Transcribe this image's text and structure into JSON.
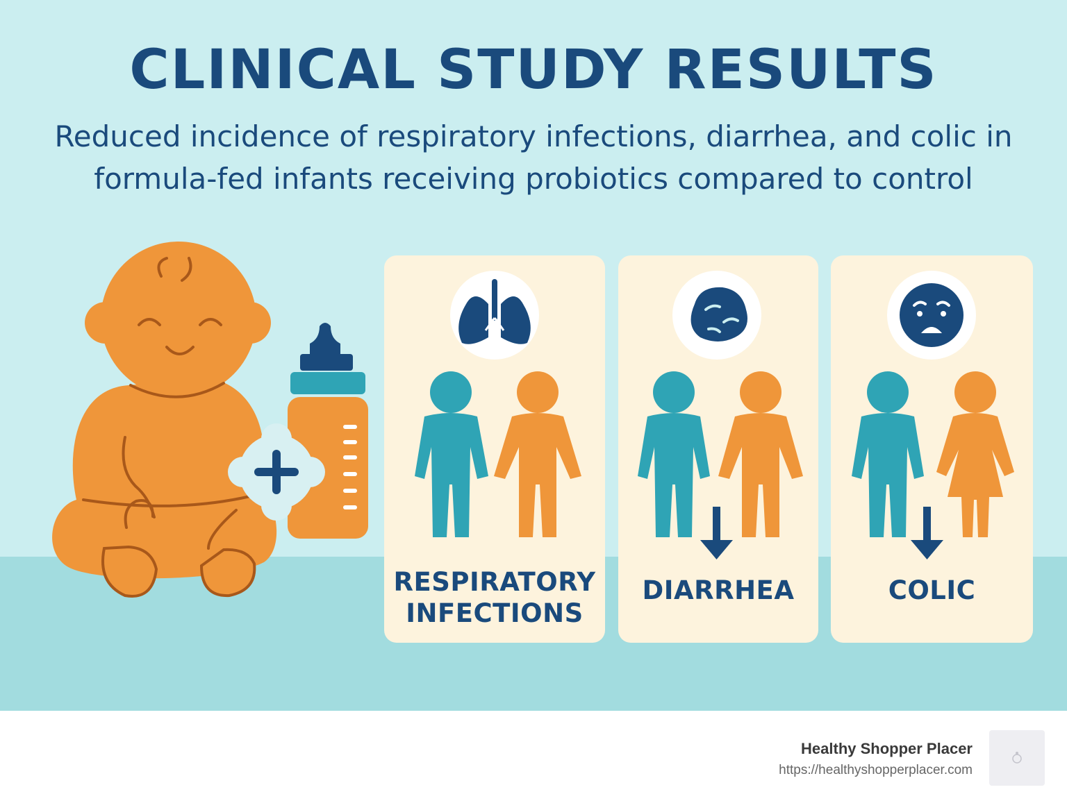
{
  "title": "CLINICAL STUDY RESULTS",
  "subtitle": "Reduced incidence of respiratory infections, diarrhea, and colic in formula-fed infants receiving probiotics compared to control",
  "colors": {
    "background": "#cbeef0",
    "floor": "#a2dcdf",
    "navy": "#1a4a7c",
    "teal": "#2fa4b5",
    "orange": "#ef963a",
    "card": "#fdf3dd"
  },
  "illustration": {
    "baby_icon": "baby-icon",
    "bottle_icon": "baby-bottle-icon",
    "plus_icon": "plus-badge-icon"
  },
  "cards": [
    {
      "label_line1": "RESPIRATORY",
      "label_line2": "INFECTIONS",
      "icon": "lungs-icon",
      "reduced_arrow": false
    },
    {
      "label": "DIARRHEA",
      "icon": "bacteria-icon",
      "reduced_arrow": true
    },
    {
      "label": "COLIC",
      "icon": "crying-face-icon",
      "reduced_arrow": true
    }
  ],
  "footer": {
    "brand_name": "Healthy Shopper Placer",
    "brand_url": "https://healthyshopperplacer.com",
    "logo_icon": "brand-logo-icon"
  }
}
